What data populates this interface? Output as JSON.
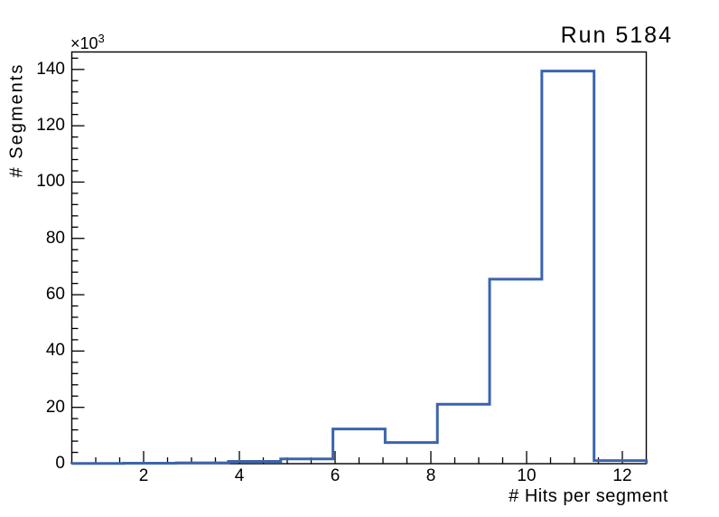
{
  "title": "Run 5184",
  "axes": {
    "x_label": "# Hits per segment",
    "y_label": "# Segments",
    "y_multiplier_base": "×10",
    "y_multiplier_exp": "3",
    "x_ticks_major": [
      2,
      4,
      6,
      8,
      10,
      12
    ],
    "x_minor_step": 0.5,
    "y_ticks_major": [
      0,
      20,
      40,
      60,
      80,
      100,
      120,
      140
    ],
    "y_minor_step": 4
  },
  "chart_data": {
    "type": "bar",
    "subtype": "step-outline-histogram",
    "title": "Run 5184",
    "xlabel": "# Hits per segment",
    "ylabel": "# Segments",
    "y_axis_unit": "values are in thousands (axis shows ×10³)",
    "xlim": [
      0.5,
      12.5
    ],
    "ylim_thousands": [
      0,
      146.2
    ],
    "bin_edges": [
      0.5,
      1.591,
      2.682,
      3.773,
      4.864,
      5.955,
      7.045,
      8.136,
      9.227,
      10.318,
      11.409,
      12.5
    ],
    "values_thousands": [
      0.1,
      0.15,
      0.3,
      0.8,
      1.7,
      12.3,
      7.5,
      21.1,
      65.5,
      139.4,
      1.1
    ],
    "grid": false,
    "legend_position": "none",
    "line_color": "#3b64ad",
    "frame_color": "#000000",
    "background_color": "#ffffff"
  }
}
